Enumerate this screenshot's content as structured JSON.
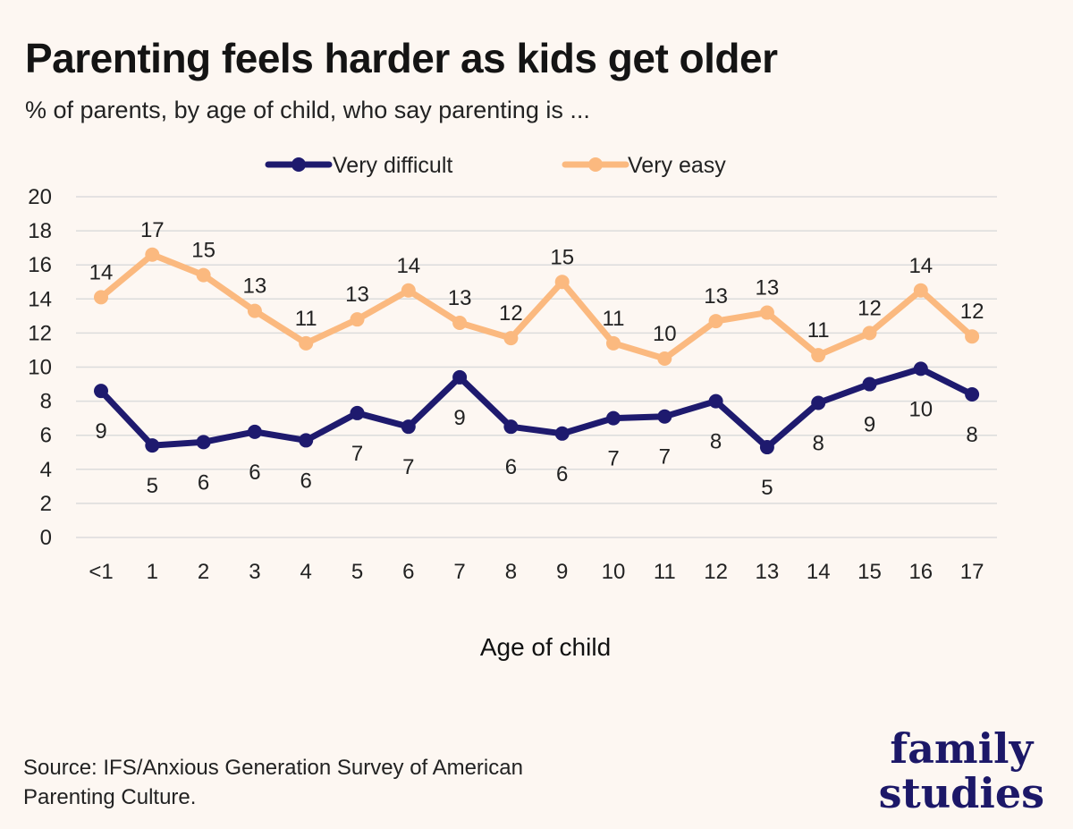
{
  "header": {
    "title": "Parenting feels harder as kids get older",
    "subtitle": "% of parents, by age of child, who say parenting is ..."
  },
  "footer": {
    "source": "Source: IFS/Anxious Generation Survey of American Parenting Culture.",
    "logo_line1": "family",
    "logo_line2": "studies"
  },
  "chart_data": {
    "type": "line",
    "title": "Parenting feels harder as kids get older",
    "subtitle": "% of parents, by age of child, who say parenting is ...",
    "xlabel": "Age of child",
    "ylabel": "",
    "ylim": [
      0,
      20
    ],
    "yticks": [
      0,
      2,
      4,
      6,
      8,
      10,
      12,
      14,
      16,
      18,
      20
    ],
    "grid": true,
    "legend_position": "top",
    "categories": [
      "<1",
      "1",
      "2",
      "3",
      "4",
      "5",
      "6",
      "7",
      "8",
      "9",
      "10",
      "11",
      "12",
      "13",
      "14",
      "15",
      "16",
      "17"
    ],
    "series": [
      {
        "name": "Very difficult",
        "color": "#1e1a6e",
        "values": [
          8.6,
          5.4,
          5.6,
          6.2,
          5.7,
          7.3,
          6.5,
          9.4,
          6.5,
          6.1,
          7.0,
          7.1,
          8.0,
          5.3,
          7.9,
          9.0,
          9.9,
          8.4
        ],
        "labels": [
          "9",
          "5",
          "6",
          "6",
          "6",
          "7",
          "7",
          "9",
          "6",
          "6",
          "7",
          "7",
          "8",
          "5",
          "8",
          "9",
          "10",
          "8"
        ]
      },
      {
        "name": "Very easy",
        "color": "#fbb97f",
        "values": [
          14.1,
          16.6,
          15.4,
          13.3,
          11.4,
          12.8,
          14.5,
          12.6,
          11.7,
          15.0,
          11.4,
          10.5,
          12.7,
          13.2,
          10.7,
          12.0,
          14.5,
          11.8
        ],
        "labels": [
          "14",
          "17",
          "15",
          "13",
          "11",
          "13",
          "14",
          "13",
          "12",
          "15",
          "11",
          "10",
          "13",
          "13",
          "11",
          "12",
          "14",
          "12"
        ]
      }
    ]
  }
}
